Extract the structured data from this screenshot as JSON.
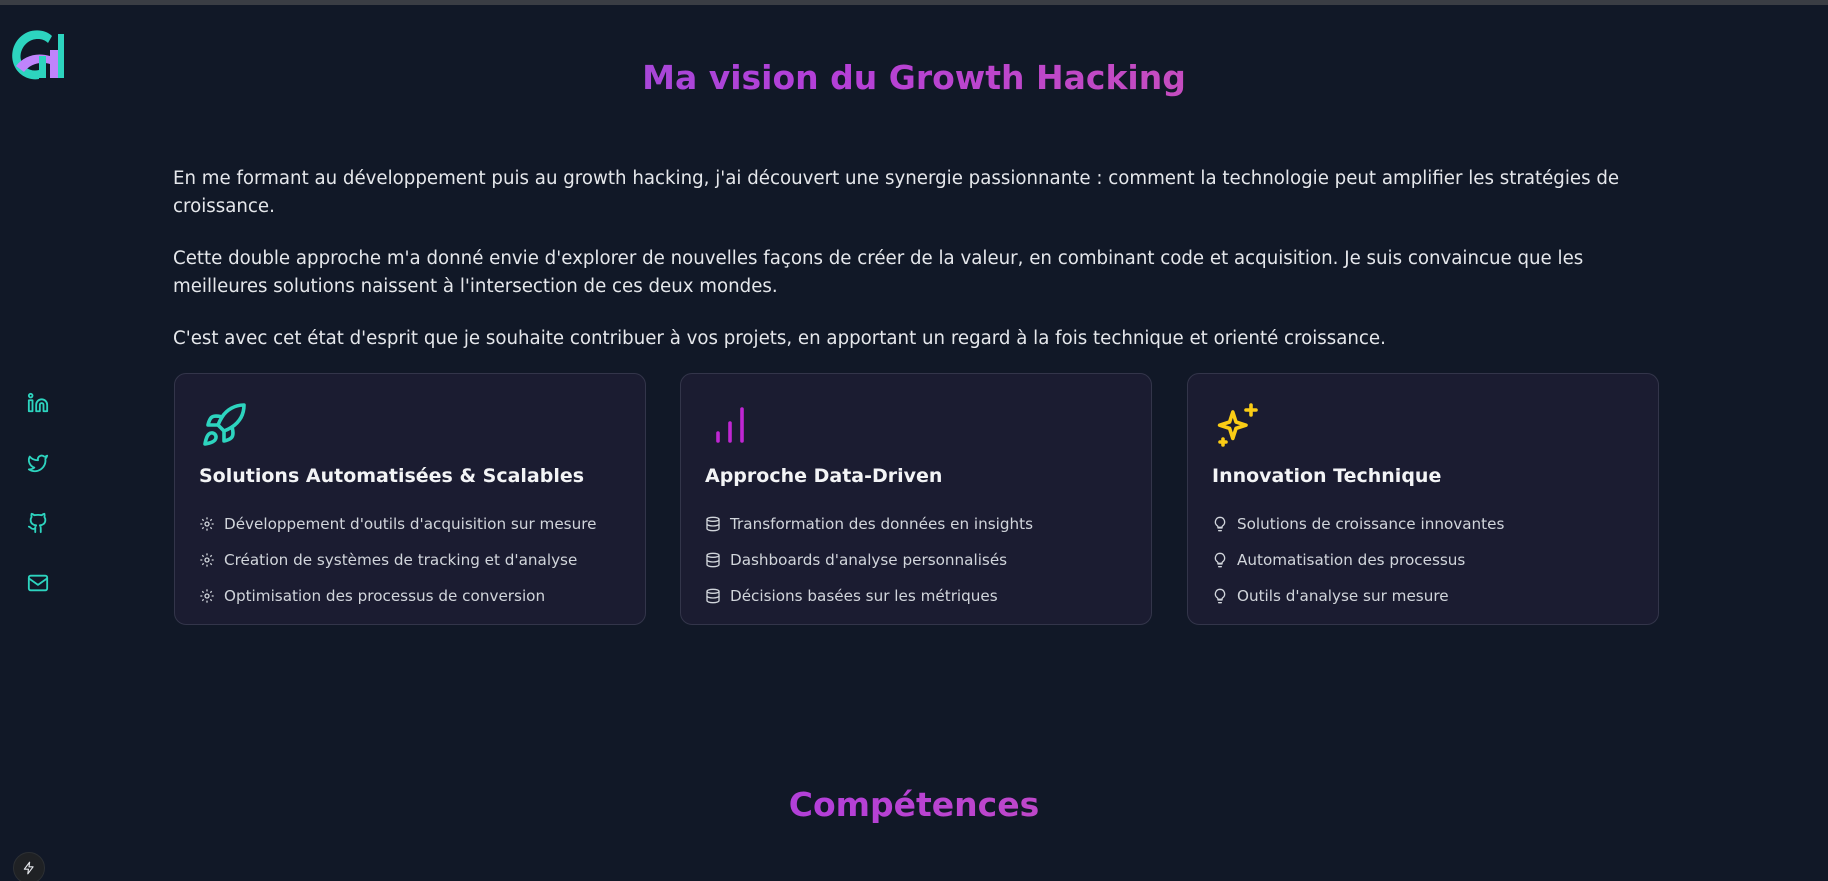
{
  "logo": {
    "text": "GH",
    "colors": {
      "teal": "#2dd4bf",
      "purple": "#c084fc"
    }
  },
  "social": [
    {
      "name": "linkedin-icon",
      "color": "#2dd4bf"
    },
    {
      "name": "twitter-icon",
      "color": "#2dd4bf"
    },
    {
      "name": "github-icon",
      "color": "#2dd4bf"
    },
    {
      "name": "mail-icon",
      "color": "#2dd4bf"
    }
  ],
  "vision": {
    "title": "Ma vision du Growth Hacking",
    "paragraphs": [
      "En me formant au développement puis au growth hacking, j'ai découvert une synergie passionnante : comment la technologie peut amplifier les stratégies de croissance.",
      "Cette double approche m'a donné envie d'explorer de nouvelles façons de créer de la valeur, en combinant code et acquisition. Je suis convaincue que les meilleures solutions naissent à l'intersection de ces deux mondes.",
      "C'est avec cet état d'esprit que je souhaite contribuer à vos projets, en apportant un regard à la fois technique et orienté croissance."
    ]
  },
  "cards": [
    {
      "icon": "rocket-icon",
      "icon_color": "#2dd4bf",
      "title": "Solutions Automatisées & Scalables",
      "item_icon": "gear-icon",
      "items": [
        "Développement d'outils d'acquisition sur mesure",
        "Création de systèmes de tracking et d'analyse",
        "Optimisation des processus de conversion"
      ]
    },
    {
      "icon": "bar-chart-icon",
      "icon_color": "#c026d3",
      "title": "Approche Data-Driven",
      "item_icon": "database-icon",
      "items": [
        "Transformation des données en insights",
        "Dashboards d'analyse personnalisés",
        "Décisions basées sur les métriques"
      ]
    },
    {
      "icon": "sparkles-icon",
      "icon_color": "#facc15",
      "title": "Innovation Technique",
      "item_icon": "lightbulb-icon",
      "items": [
        "Solutions de croissance innovantes",
        "Automatisation des processus",
        "Outils d'analyse sur mesure"
      ]
    }
  ],
  "competences": {
    "title": "Compétences"
  },
  "colors": {
    "background": "#111827",
    "card_background": "#1b1c31",
    "gradient_start": "#7c63d9",
    "gradient_end": "#e36494"
  }
}
